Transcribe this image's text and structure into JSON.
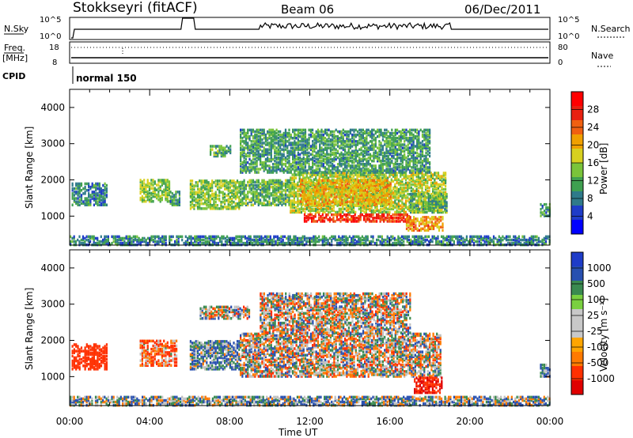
{
  "header": {
    "station": "Stokkseyri (fitACF)",
    "beam": "Beam 06",
    "date": "06/Dec/2011"
  },
  "top_panels": {
    "nsky_label": "N.Sky",
    "nsky_ticks": [
      "10^5",
      "10^0"
    ],
    "nsearch_label": "N.Search",
    "nsearch_ticks": [
      "10^5",
      "10^0"
    ],
    "freq_label": "Freq.",
    "freq_unit": "[MHz]",
    "freq_ticks": [
      "18",
      "8"
    ],
    "nave_label": "Nave",
    "nave_ticks": [
      "80",
      "0"
    ],
    "cpid_label": "CPID",
    "cpid_value": "normal 150"
  },
  "x_axis": {
    "label": "Time UT",
    "ticks": [
      "00:00",
      "04:00",
      "08:00",
      "12:00",
      "16:00",
      "20:00",
      "00:00"
    ]
  },
  "colors": {
    "power_scale": [
      "#0000ff",
      "#1e3cc8",
      "#2f7a8a",
      "#3fa050",
      "#7ac43a",
      "#d8d020",
      "#f0a000",
      "#f06010",
      "#e82010",
      "#ff0000"
    ],
    "velocity_scale": [
      "#e00000",
      "#ff3000",
      "#ff7a00",
      "#ffa500",
      "#c8c8c8",
      "#c8c8c8",
      "#7ad040",
      "#3a8a50",
      "#2850b0",
      "#1e3cc8"
    ],
    "ground_scatter": "#c0c0c0"
  },
  "chart_data": [
    {
      "type": "heatmap",
      "name": "Power",
      "xlabel": "Time UT",
      "ylabel": "Slant Range [km]",
      "x_ticks": [
        "00:00",
        "04:00",
        "08:00",
        "12:00",
        "16:00",
        "20:00",
        "00:00"
      ],
      "xlim_hours": [
        0,
        24
      ],
      "ylim": [
        200,
        4500
      ],
      "y_ticks": [
        1000,
        2000,
        3000,
        4000
      ],
      "colorbar": {
        "label": "Power [dB]",
        "range": [
          0,
          32
        ],
        "ticks": [
          "4",
          "8",
          "12",
          "16",
          "20",
          "24",
          "28"
        ]
      },
      "regions": [
        {
          "t": [
            0.1,
            1.9
          ],
          "r": [
            1300,
            1900
          ],
          "v": 8
        },
        {
          "t": [
            3.5,
            5.0
          ],
          "r": [
            1400,
            2000
          ],
          "v": 14
        },
        {
          "t": [
            5.0,
            5.5
          ],
          "r": [
            1300,
            1700
          ],
          "v": 10
        },
        {
          "t": [
            6.0,
            8.5
          ],
          "r": [
            1200,
            2000
          ],
          "v": 14
        },
        {
          "t": [
            7.0,
            8.0
          ],
          "r": [
            2650,
            2950
          ],
          "v": 12
        },
        {
          "t": [
            8.5,
            11.0
          ],
          "r": [
            1300,
            2000
          ],
          "v": 12
        },
        {
          "t": [
            11.0,
            18.8
          ],
          "r": [
            1100,
            2200
          ],
          "v": 16
        },
        {
          "t": [
            11.5,
            16.0
          ],
          "r": [
            1300,
            2000
          ],
          "v": 20
        },
        {
          "t": [
            11.7,
            17.0
          ],
          "r": [
            850,
            1050
          ],
          "v": 28
        },
        {
          "t": [
            16.8,
            18.6
          ],
          "r": [
            600,
            1000
          ],
          "v": 22
        },
        {
          "t": [
            17.0,
            18.8
          ],
          "r": [
            1100,
            1600
          ],
          "v": 12
        },
        {
          "t": [
            8.5,
            18.0
          ],
          "r": [
            2200,
            3400
          ],
          "v": 10
        },
        {
          "t": [
            23.5,
            24.0
          ],
          "r": [
            1000,
            1350
          ],
          "v": 10
        },
        {
          "t": [
            0.0,
            24.0
          ],
          "r": [
            200,
            450
          ],
          "v": 8
        }
      ]
    },
    {
      "type": "heatmap",
      "name": "Velocity",
      "xlabel": "Time UT",
      "ylabel": "Slant Range [km]",
      "x_ticks": [
        "00:00",
        "04:00",
        "08:00",
        "12:00",
        "16:00",
        "20:00",
        "00:00"
      ],
      "xlim_hours": [
        0,
        24
      ],
      "ylim": [
        200,
        4500
      ],
      "y_ticks": [
        1000,
        2000,
        3000,
        4000
      ],
      "colorbar": {
        "label": "Velocity [m s⁻¹]",
        "ticks": [
          "1000",
          "500",
          "100",
          "25",
          "-25",
          "-100",
          "-500",
          "-1000"
        ]
      },
      "regions": [
        {
          "t": [
            0.1,
            1.9
          ],
          "r": [
            1200,
            1900
          ],
          "v": -300
        },
        {
          "t": [
            3.5,
            5.3
          ],
          "r": [
            1300,
            2000
          ],
          "v": -80
        },
        {
          "t": [
            6.0,
            8.5
          ],
          "r": [
            1200,
            2000
          ],
          "v": 60
        },
        {
          "t": [
            8.5,
            18.5
          ],
          "r": [
            1000,
            2200
          ],
          "v": 0
        },
        {
          "t": [
            6.5,
            9.0
          ],
          "r": [
            2600,
            2950
          ],
          "v": 0
        },
        {
          "t": [
            9.5,
            17.0
          ],
          "r": [
            2200,
            3300
          ],
          "v": 0
        },
        {
          "t": [
            17.2,
            18.6
          ],
          "r": [
            550,
            1000
          ],
          "v": -400
        },
        {
          "t": [
            23.5,
            24.0
          ],
          "r": [
            1000,
            1350
          ],
          "v": 80
        },
        {
          "t": [
            0.0,
            24.0
          ],
          "r": [
            200,
            450
          ],
          "v": 40
        }
      ]
    }
  ]
}
